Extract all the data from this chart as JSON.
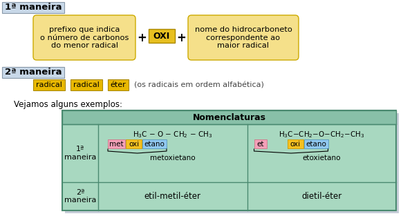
{
  "bg_color": "#ffffff",
  "title1": "1ª maneira",
  "title2": "2ª maneira",
  "box1_text": "prefixo que indica\no número de carbonos\ndo menor radical",
  "box1_color": "#f5e08a",
  "oxi_text": "OXI",
  "oxi_color": "#e8c020",
  "box2_text": "nome do hidrocarboneto\ncorrespondente ao\nmaior radical",
  "box2_color": "#f5e08a",
  "radical1_text": "radical",
  "radical2_text": "radical",
  "eter_text": "éter",
  "radical_color": "#e8b800",
  "ordem_text": "(os radicais em ordem alfabética)",
  "vejamos_text": "Vejamos alguns exemplos:",
  "table_header": "Nomenclaturas",
  "table_bg": "#a8d8c0",
  "table_header_bg": "#88c0a8",
  "row1_label": "1ª\nmaneira",
  "row2_label": "2ª\nmaneira",
  "met_color": "#f4a0b8",
  "oxi_tag_color": "#f5c020",
  "etano_color": "#90c8f0",
  "et_color": "#f4a0b8",
  "name1": "metoxietano",
  "name2": "etoxietano",
  "row2_col1": "etil-metil-éter",
  "row2_col2": "dietil-éter",
  "title_bg": "#c8d8e8",
  "title_border": "#8898a8",
  "shadow_color": "#b0b8c8"
}
